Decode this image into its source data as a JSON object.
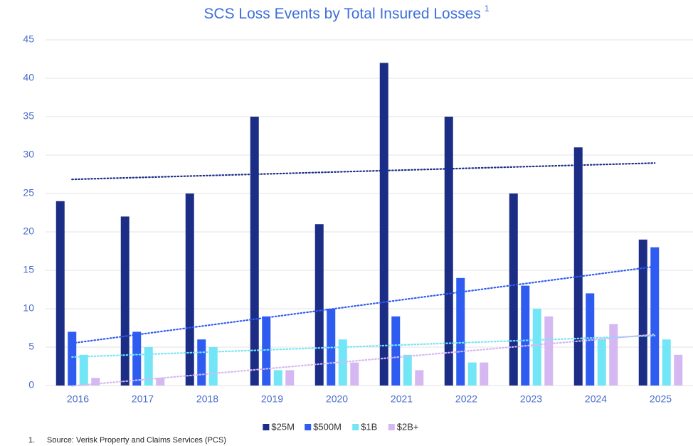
{
  "chart_data": {
    "type": "bar",
    "title": "SCS Loss Events by Total Insured Losses",
    "title_note": "1",
    "categories": [
      "2016",
      "2017",
      "2018",
      "2019",
      "2020",
      "2021",
      "2022",
      "2023",
      "2024",
      "2025"
    ],
    "series": [
      {
        "name": "$25M",
        "color": "#1c2d86",
        "values": [
          24,
          22,
          25,
          35,
          21,
          42,
          35,
          25,
          31,
          19
        ]
      },
      {
        "name": "$500M",
        "color": "#2f5cf0",
        "values": [
          7,
          7,
          6,
          9,
          10,
          9,
          14,
          13,
          12,
          18
        ]
      },
      {
        "name": "$1B",
        "color": "#72e6f6",
        "values": [
          4,
          5,
          5,
          2,
          6,
          4,
          3,
          10,
          6,
          6
        ]
      },
      {
        "name": "$2B+",
        "color": "#d5b8f2",
        "values": [
          1,
          1,
          0,
          2,
          3,
          2,
          3,
          9,
          8,
          4
        ]
      }
    ],
    "ylim": [
      0,
      45
    ],
    "yticks": [
      0,
      5,
      10,
      15,
      20,
      25,
      30,
      35,
      40,
      45
    ],
    "grid": true,
    "trendline": "linear",
    "legend": "bottom",
    "footnote_marker": "1.",
    "footnote": "Source: Verisk Property and Claims Services (PCS)"
  }
}
